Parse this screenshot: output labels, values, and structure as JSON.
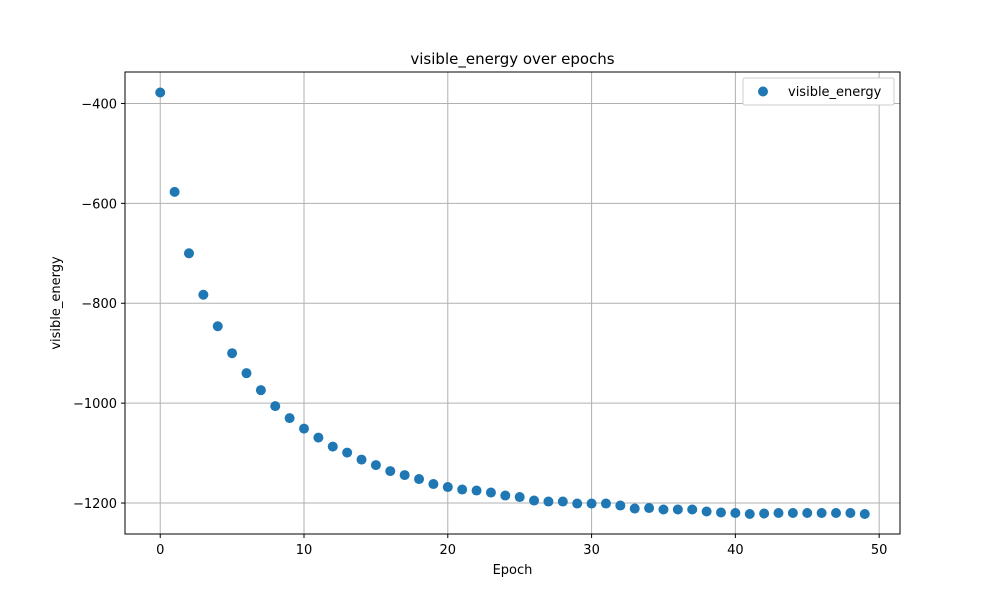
{
  "chart_data": {
    "type": "scatter",
    "title": "visible_energy over epochs",
    "xlabel": "Epoch",
    "ylabel": "visible_energy",
    "xlim": [
      -2.45,
      51.45
    ],
    "ylim": [
      -1262,
      -337
    ],
    "xticks": [
      0,
      10,
      20,
      30,
      40,
      50
    ],
    "yticks": [
      -400,
      -600,
      -800,
      -1000,
      -1200
    ],
    "xtick_labels": [
      "0",
      "10",
      "20",
      "30",
      "40",
      "50"
    ],
    "ytick_labels": [
      "−400",
      "−600",
      "−800",
      "−1000",
      "−1200"
    ],
    "grid": true,
    "legend_position": "top-right",
    "series": [
      {
        "name": "visible_energy",
        "color": "#1f77b4",
        "x": [
          0,
          1,
          2,
          3,
          4,
          5,
          6,
          7,
          8,
          9,
          10,
          11,
          12,
          13,
          14,
          15,
          16,
          17,
          18,
          19,
          20,
          21,
          22,
          23,
          24,
          25,
          26,
          27,
          28,
          29,
          30,
          31,
          32,
          33,
          34,
          35,
          36,
          37,
          38,
          39,
          40,
          41,
          42,
          43,
          44,
          45,
          46,
          47,
          48,
          49
        ],
        "y": [
          -378,
          -577,
          -700,
          -783,
          -846,
          -900,
          -940,
          -974,
          -1006,
          -1030,
          -1051,
          -1069,
          -1087,
          -1099,
          -1113,
          -1124,
          -1136,
          -1144,
          -1152,
          -1162,
          -1168,
          -1173,
          -1175,
          -1179,
          -1185,
          -1188,
          -1195,
          -1197,
          -1197,
          -1201,
          -1201,
          -1201,
          -1205,
          -1211,
          -1210,
          -1213,
          -1213,
          -1213,
          -1217,
          -1219,
          -1220,
          -1222,
          -1221,
          -1220,
          -1220,
          -1220,
          -1220,
          -1220,
          -1220,
          -1222
        ]
      }
    ]
  }
}
